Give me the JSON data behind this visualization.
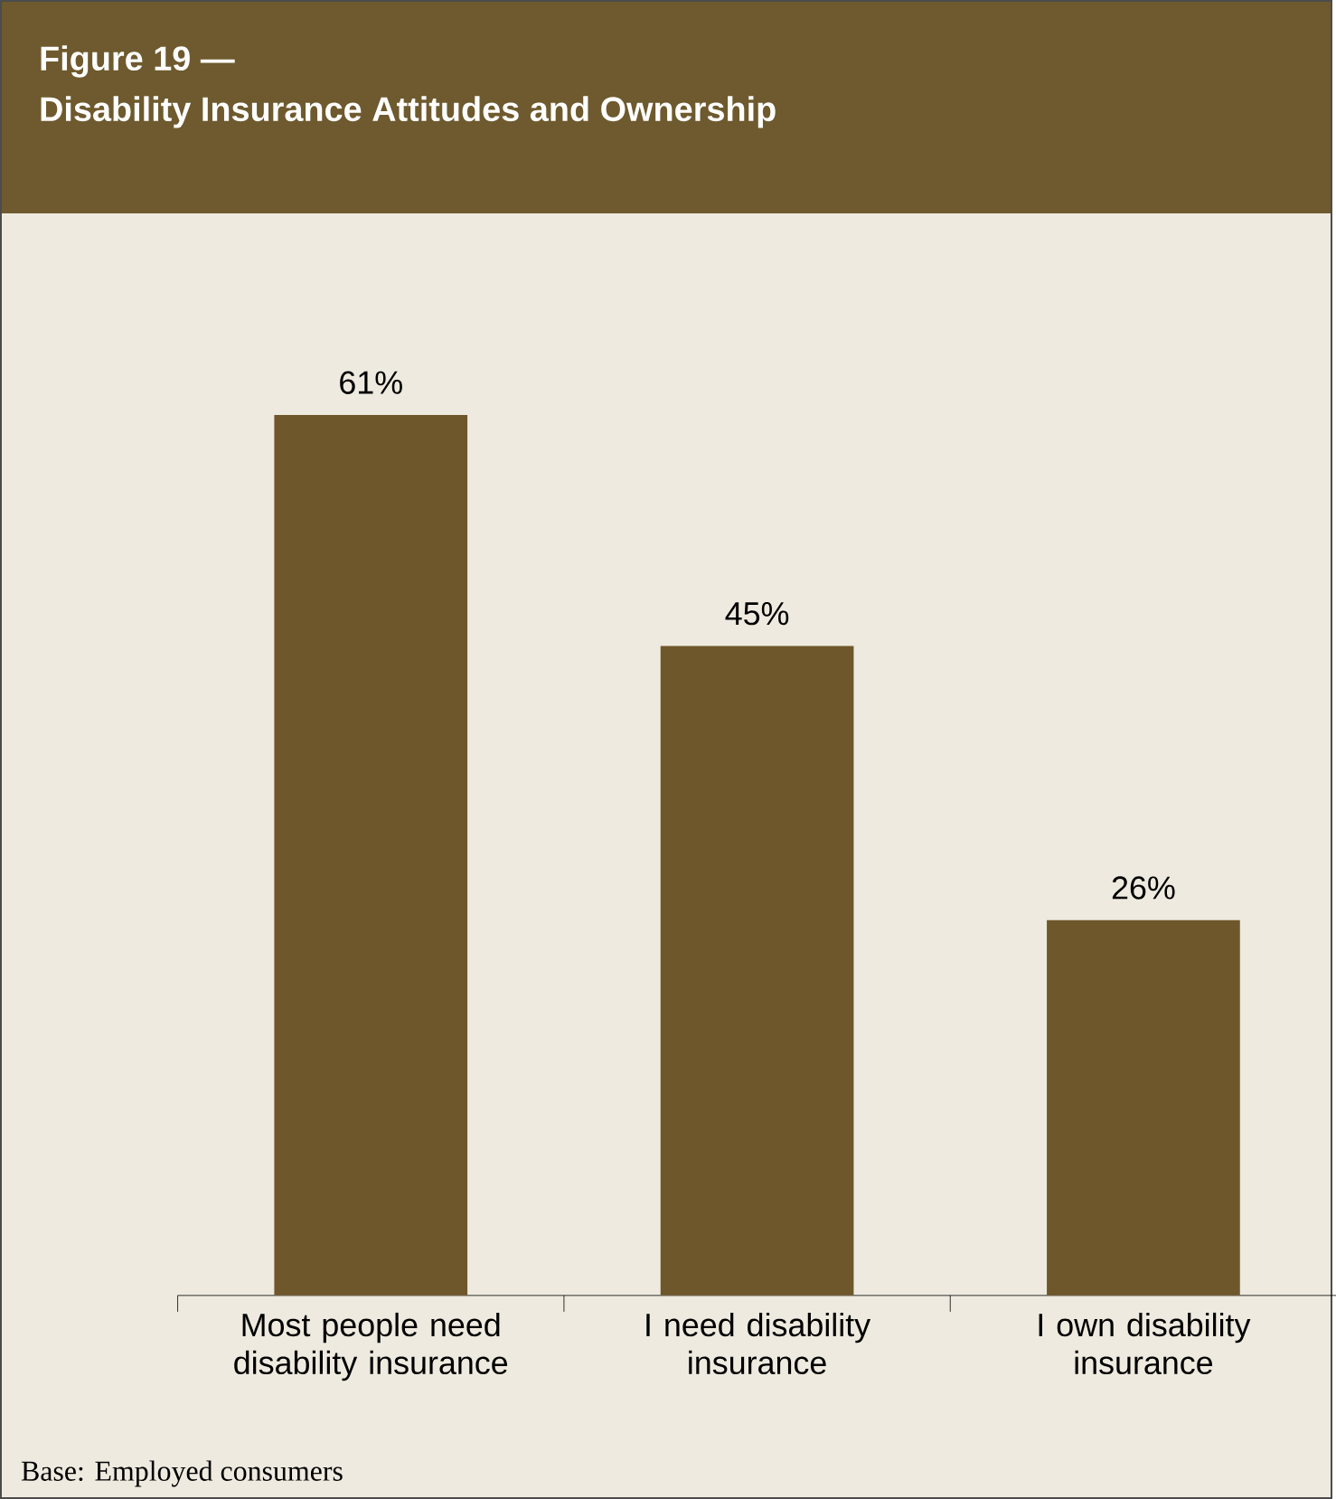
{
  "chart_data": {
    "type": "bar",
    "title": "Figure 19 —",
    "subtitle": "Disability Insurance Attitudes and Ownership",
    "categories": [
      "Most people need disability insurance",
      "I need disability insurance",
      "I own disability insurance"
    ],
    "values": [
      61,
      45,
      26
    ],
    "value_labels": [
      "61%",
      "45%",
      "26%"
    ],
    "color": "#6e572b",
    "annotations": [
      "Base: Employed consumers"
    ]
  }
}
